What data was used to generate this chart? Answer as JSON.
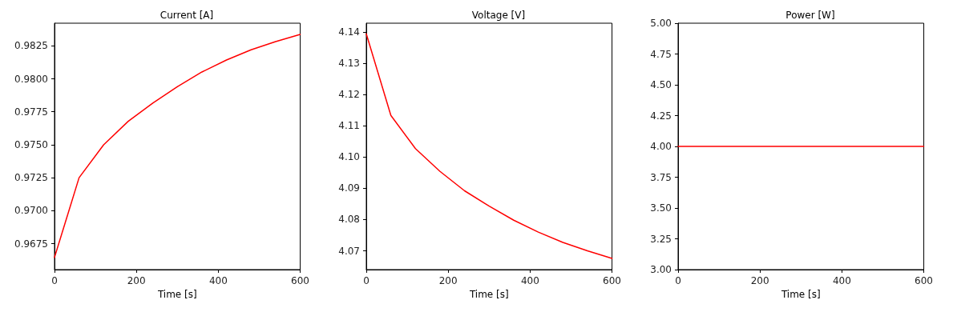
{
  "chart_data": [
    {
      "type": "line",
      "title": "Current [A]",
      "xlabel": "Time [s]",
      "x": [
        0,
        60,
        120,
        180,
        240,
        300,
        360,
        420,
        480,
        540,
        600
      ],
      "series": [
        {
          "color": "#ff0000",
          "values": [
            0.96645,
            0.9725,
            0.975,
            0.97678,
            0.97816,
            0.9794,
            0.98052,
            0.98143,
            0.9822,
            0.98282,
            0.98337
          ]
        }
      ],
      "xlim": [
        0,
        600
      ],
      "xticks": [
        0,
        200,
        400,
        600
      ],
      "ylim": [
        0.96553,
        0.98422
      ],
      "yticks": [
        0.9675,
        {
          "value": 0.97,
          "label": "0.9700"
        },
        {
          "value": 0.9725,
          "label": "0.9725"
        },
        {
          "value": 0.975,
          "label": "0.9750"
        },
        0.9775,
        {
          "value": 0.98,
          "label": "0.9800"
        },
        0.9825
      ],
      "grid": false,
      "marker": "none",
      "line_style": "solid"
    },
    {
      "type": "line",
      "title": "Voltage [V]",
      "xlabel": "Time [s]",
      "x": [
        0,
        60,
        120,
        180,
        240,
        300,
        360,
        420,
        480,
        540,
        600
      ],
      "series": [
        {
          "color": "#ff0000",
          "values": [
            4.1394,
            4.1133,
            4.1027,
            4.0954,
            4.0892,
            4.0843,
            4.0798,
            4.076,
            4.0727,
            4.07,
            4.0676
          ]
        }
      ],
      "xlim": [
        0,
        600
      ],
      "xticks": [
        0,
        200,
        400,
        600
      ],
      "ylim": [
        4.064,
        4.1428
      ],
      "yticks": [
        4.07,
        4.08,
        4.09,
        {
          "value": 4.1,
          "label": "4.10"
        },
        4.11,
        4.12,
        4.13,
        4.14
      ],
      "grid": false,
      "marker": "none",
      "line_style": "solid"
    },
    {
      "type": "line",
      "title": "Power [W]",
      "xlabel": "Time [s]",
      "x": [
        0,
        600
      ],
      "series": [
        {
          "color": "#ff0000",
          "values": [
            4,
            4
          ]
        }
      ],
      "xlim": [
        0,
        600
      ],
      "xticks": [
        0,
        200,
        400,
        600
      ],
      "ylim": [
        3,
        5
      ],
      "yticks": [
        {
          "value": 3,
          "label": "3.00"
        },
        {
          "value": 3.25,
          "label": "3.25"
        },
        {
          "value": 3.5,
          "label": "3.50"
        },
        {
          "value": 3.75,
          "label": "3.75"
        },
        {
          "value": 4,
          "label": "4.00"
        },
        {
          "value": 4.25,
          "label": "4.25"
        },
        {
          "value": 4.5,
          "label": "4.50"
        },
        {
          "value": 4.75,
          "label": "4.75"
        },
        {
          "value": 5,
          "label": "5.00"
        }
      ],
      "grid": false,
      "marker": "none",
      "line_style": "solid"
    }
  ]
}
